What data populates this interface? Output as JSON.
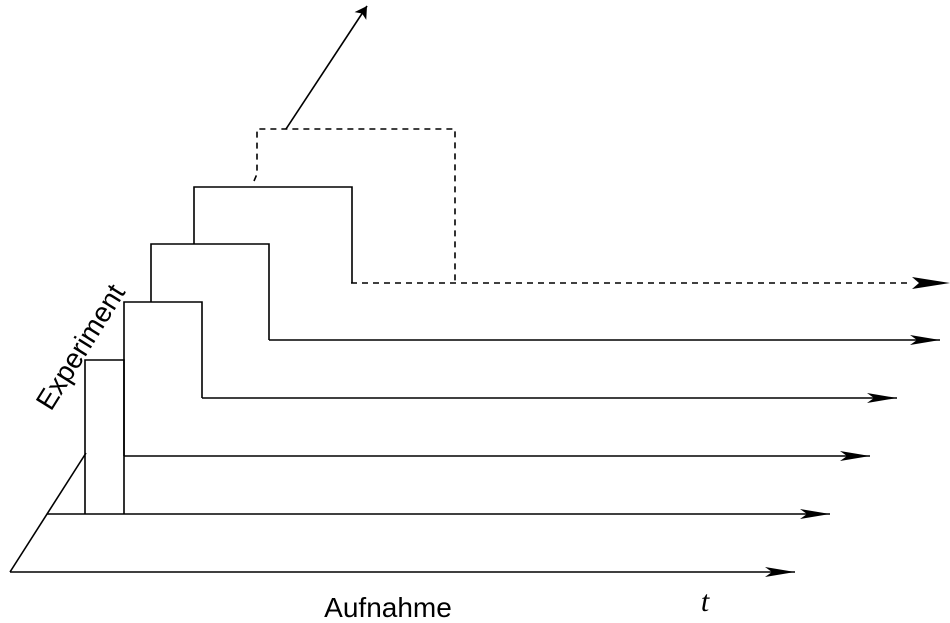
{
  "labels": {
    "x_axis": "Aufnahme",
    "time": "t",
    "depth_axis": "Experiment"
  }
}
